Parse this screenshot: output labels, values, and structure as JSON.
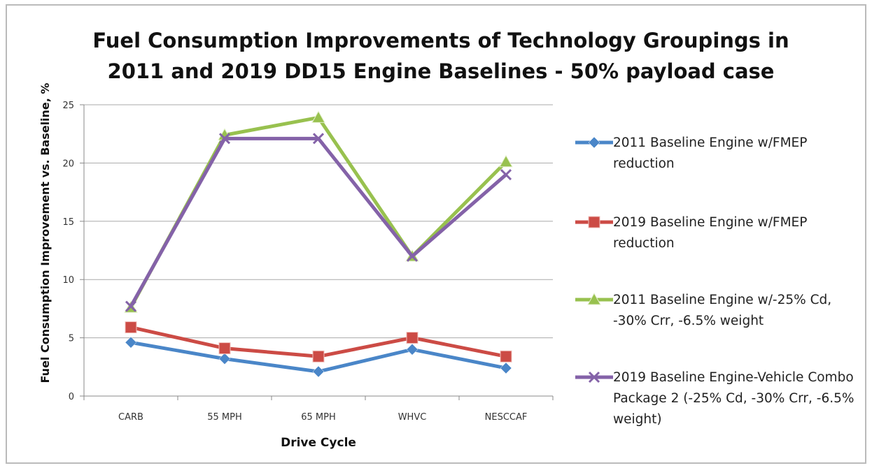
{
  "chart_data": {
    "type": "line",
    "title": "Fuel Consumption Improvements of Technology Groupings in 2011 and 2019 DD15 Engine Baselines - 50% payload case",
    "x_label": "Drive Cycle",
    "y_label": "Fuel Consumption Improvement vs. Baseline, %",
    "categories": [
      "CARB",
      "55 MPH",
      "65 MPH",
      "WHVC",
      "NESCCAF"
    ],
    "series": [
      {
        "name": "2011 Baseline Engine w/FMEP reduction",
        "color": "#4a86c8",
        "marker": "diamond",
        "values": [
          4.6,
          3.2,
          2.1,
          4.0,
          2.4
        ]
      },
      {
        "name": "2019 Baseline Engine w/FMEP reduction",
        "color": "#cc4b45",
        "marker": "square",
        "values": [
          5.9,
          4.1,
          3.4,
          5.0,
          3.4
        ]
      },
      {
        "name": "2011 Baseline Engine w/-25% Cd, -30% Crr, -6.5% weight",
        "color": "#98c14f",
        "marker": "triangle",
        "values": [
          7.6,
          22.4,
          23.9,
          12.0,
          20.1
        ]
      },
      {
        "name": "2019 Baseline Engine-Vehicle Combo Package 2 (-25% Cd, -30% Crr, -6.5% weight)",
        "color": "#8462a8",
        "marker": "x",
        "values": [
          7.7,
          22.1,
          22.1,
          12.0,
          19.0
        ]
      }
    ],
    "ylim": [
      0,
      25
    ],
    "yticks": [
      0,
      5,
      10,
      15,
      20,
      25
    ],
    "grid": true,
    "legend": "right"
  }
}
